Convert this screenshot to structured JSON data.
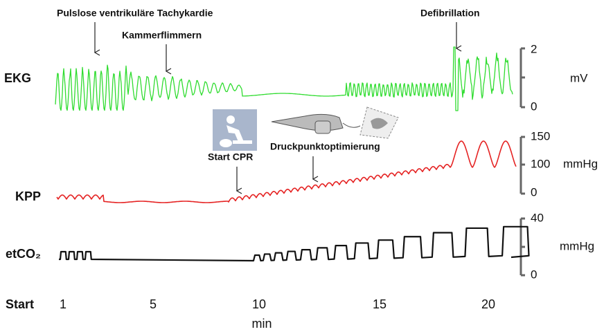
{
  "annotations": [
    "Pulslose ventrikuläre Tachykardie",
    "Kammerflimmern",
    "Start CPR",
    "Druckpunktoptimierung",
    "Defibrillation"
  ],
  "channels": [
    {
      "label": "EKG",
      "unit": "mV",
      "ticks": [
        "2",
        "0"
      ]
    },
    {
      "label": "KPP",
      "unit": "mmHg",
      "ticks": [
        "150",
        "100",
        "0"
      ]
    },
    {
      "label": "etCO₂",
      "unit": "mmHg",
      "ticks": [
        "40",
        "0"
      ]
    }
  ],
  "time_axis": {
    "start_label": "Start",
    "ticks": [
      "1",
      "5",
      "10",
      "15",
      "20"
    ],
    "title": "min"
  }
}
